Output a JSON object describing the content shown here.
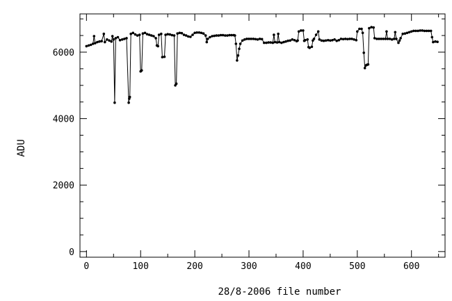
{
  "chart_data": {
    "type": "line",
    "title": "",
    "xlabel": "28/8-2006 file number",
    "ylabel": "ADU",
    "xlim": [
      -12,
      662
    ],
    "ylim": [
      -170,
      7150
    ],
    "x_ticks": [
      0,
      100,
      200,
      300,
      400,
      500,
      600
    ],
    "x_tick_labels": [
      "0",
      "100",
      "200",
      "300",
      "400",
      "500",
      "600"
    ],
    "y_ticks": [
      0,
      2000,
      4000,
      6000
    ],
    "y_tick_labels": [
      "0",
      "2000",
      "4000",
      "6000"
    ],
    "grid": false,
    "marker": "dot",
    "line_color": "#000000",
    "series": [
      {
        "name": "",
        "points": [
          [
            0,
            6180
          ],
          [
            4,
            6200
          ],
          [
            8,
            6220
          ],
          [
            12,
            6250
          ],
          [
            14,
            6480
          ],
          [
            16,
            6270
          ],
          [
            20,
            6300
          ],
          [
            24,
            6320
          ],
          [
            28,
            6330
          ],
          [
            32,
            6550
          ],
          [
            34,
            6300
          ],
          [
            38,
            6380
          ],
          [
            42,
            6350
          ],
          [
            46,
            6320
          ],
          [
            48,
            6480
          ],
          [
            50,
            6380
          ],
          [
            52,
            4480
          ],
          [
            54,
            6420
          ],
          [
            58,
            6450
          ],
          [
            62,
            6360
          ],
          [
            66,
            6380
          ],
          [
            70,
            6400
          ],
          [
            74,
            6420
          ],
          [
            78,
            4480
          ],
          [
            79,
            4600
          ],
          [
            80,
            4650
          ],
          [
            82,
            6550
          ],
          [
            86,
            6580
          ],
          [
            90,
            6530
          ],
          [
            94,
            6500
          ],
          [
            98,
            6520
          ],
          [
            100,
            5420
          ],
          [
            102,
            5450
          ],
          [
            104,
            6560
          ],
          [
            108,
            6580
          ],
          [
            112,
            6540
          ],
          [
            116,
            6520
          ],
          [
            120,
            6500
          ],
          [
            124,
            6480
          ],
          [
            128,
            6420
          ],
          [
            130,
            6200
          ],
          [
            132,
            6180
          ],
          [
            134,
            6520
          ],
          [
            138,
            6550
          ],
          [
            140,
            5850
          ],
          [
            144,
            5860
          ],
          [
            146,
            6520
          ],
          [
            150,
            6540
          ],
          [
            154,
            6530
          ],
          [
            158,
            6510
          ],
          [
            162,
            6500
          ],
          [
            164,
            5000
          ],
          [
            166,
            5050
          ],
          [
            168,
            6560
          ],
          [
            172,
            6580
          ],
          [
            176,
            6570
          ],
          [
            180,
            6520
          ],
          [
            184,
            6500
          ],
          [
            188,
            6470
          ],
          [
            192,
            6460
          ],
          [
            196,
            6520
          ],
          [
            200,
            6580
          ],
          [
            204,
            6590
          ],
          [
            208,
            6590
          ],
          [
            212,
            6580
          ],
          [
            216,
            6560
          ],
          [
            220,
            6500
          ],
          [
            222,
            6300
          ],
          [
            224,
            6400
          ],
          [
            228,
            6450
          ],
          [
            232,
            6480
          ],
          [
            236,
            6490
          ],
          [
            240,
            6500
          ],
          [
            244,
            6500
          ],
          [
            248,
            6510
          ],
          [
            252,
            6510
          ],
          [
            256,
            6500
          ],
          [
            260,
            6500
          ],
          [
            264,
            6510
          ],
          [
            268,
            6510
          ],
          [
            272,
            6510
          ],
          [
            274,
            6500
          ],
          [
            276,
            6250
          ],
          [
            278,
            5750
          ],
          [
            280,
            5900
          ],
          [
            282,
            6100
          ],
          [
            284,
            6250
          ],
          [
            288,
            6350
          ],
          [
            292,
            6380
          ],
          [
            296,
            6400
          ],
          [
            300,
            6400
          ],
          [
            304,
            6400
          ],
          [
            308,
            6400
          ],
          [
            312,
            6390
          ],
          [
            316,
            6380
          ],
          [
            320,
            6400
          ],
          [
            324,
            6390
          ],
          [
            328,
            6280
          ],
          [
            332,
            6280
          ],
          [
            336,
            6290
          ],
          [
            340,
            6290
          ],
          [
            344,
            6280
          ],
          [
            346,
            6520
          ],
          [
            348,
            6300
          ],
          [
            352,
            6290
          ],
          [
            354,
            6550
          ],
          [
            356,
            6300
          ],
          [
            360,
            6280
          ],
          [
            364,
            6300
          ],
          [
            368,
            6320
          ],
          [
            372,
            6340
          ],
          [
            376,
            6350
          ],
          [
            380,
            6380
          ],
          [
            384,
            6360
          ],
          [
            388,
            6330
          ],
          [
            390,
            6350
          ],
          [
            392,
            6620
          ],
          [
            396,
            6650
          ],
          [
            400,
            6650
          ],
          [
            402,
            6340
          ],
          [
            404,
            6360
          ],
          [
            408,
            6380
          ],
          [
            410,
            6150
          ],
          [
            412,
            6130
          ],
          [
            416,
            6160
          ],
          [
            418,
            6350
          ],
          [
            420,
            6400
          ],
          [
            424,
            6520
          ],
          [
            428,
            6620
          ],
          [
            430,
            6380
          ],
          [
            434,
            6350
          ],
          [
            438,
            6340
          ],
          [
            442,
            6350
          ],
          [
            446,
            6360
          ],
          [
            450,
            6350
          ],
          [
            454,
            6360
          ],
          [
            458,
            6380
          ],
          [
            462,
            6340
          ],
          [
            466,
            6360
          ],
          [
            470,
            6400
          ],
          [
            474,
            6390
          ],
          [
            478,
            6400
          ],
          [
            482,
            6390
          ],
          [
            486,
            6400
          ],
          [
            490,
            6400
          ],
          [
            494,
            6380
          ],
          [
            498,
            6360
          ],
          [
            500,
            6620
          ],
          [
            504,
            6700
          ],
          [
            508,
            6700
          ],
          [
            510,
            6580
          ],
          [
            512,
            5980
          ],
          [
            514,
            5520
          ],
          [
            516,
            5600
          ],
          [
            518,
            5620
          ],
          [
            520,
            5630
          ],
          [
            522,
            6720
          ],
          [
            526,
            6750
          ],
          [
            530,
            6740
          ],
          [
            532,
            6420
          ],
          [
            536,
            6400
          ],
          [
            540,
            6400
          ],
          [
            544,
            6400
          ],
          [
            548,
            6400
          ],
          [
            552,
            6400
          ],
          [
            554,
            6620
          ],
          [
            556,
            6400
          ],
          [
            560,
            6400
          ],
          [
            564,
            6380
          ],
          [
            568,
            6400
          ],
          [
            570,
            6600
          ],
          [
            572,
            6400
          ],
          [
            576,
            6280
          ],
          [
            578,
            6350
          ],
          [
            580,
            6420
          ],
          [
            584,
            6550
          ],
          [
            588,
            6560
          ],
          [
            592,
            6580
          ],
          [
            596,
            6600
          ],
          [
            600,
            6620
          ],
          [
            604,
            6640
          ],
          [
            608,
            6640
          ],
          [
            612,
            6640
          ],
          [
            616,
            6650
          ],
          [
            620,
            6650
          ],
          [
            624,
            6640
          ],
          [
            628,
            6640
          ],
          [
            632,
            6640
          ],
          [
            636,
            6640
          ],
          [
            638,
            6450
          ],
          [
            640,
            6300
          ],
          [
            644,
            6320
          ],
          [
            648,
            6310
          ]
        ]
      }
    ]
  }
}
